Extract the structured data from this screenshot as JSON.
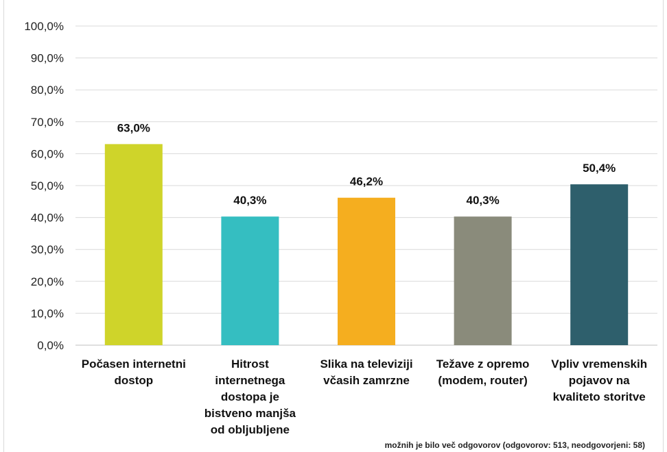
{
  "chart_data": {
    "type": "bar",
    "title": "",
    "xlabel": "",
    "ylabel": "",
    "categories": [
      [
        "Počasen internetni",
        "dostop"
      ],
      [
        "Hitrost",
        "internetnega",
        "dostopa je",
        "bistveno manjša",
        "od obljubljene"
      ],
      [
        "Slika na televiziji",
        "včasih zamrzne"
      ],
      [
        "Težave z opremo",
        "(modem, router)"
      ],
      [
        "Vpliv vremenskih",
        "pojavov na",
        "kvaliteto storitve"
      ]
    ],
    "values": [
      63.0,
      40.3,
      46.2,
      40.3,
      50.4
    ],
    "value_labels": [
      "63,0%",
      "40,3%",
      "46,2%",
      "40,3%",
      "50,4%"
    ],
    "colors": [
      "#cfd42a",
      "#35bec1",
      "#f5ae1f",
      "#8a8b7b",
      "#2e5f6c"
    ],
    "ylim": [
      0,
      100
    ],
    "yticks": [
      "0,0%",
      "10,0%",
      "20,0%",
      "30,0%",
      "40,0%",
      "50,0%",
      "60,0%",
      "70,0%",
      "80,0%",
      "90,0%",
      "100,0%"
    ],
    "grid": true,
    "legend": "none"
  },
  "footnote": "možnih je bilo več odgovorov (odgovorov: 513, neodgovorjeni: 58)"
}
